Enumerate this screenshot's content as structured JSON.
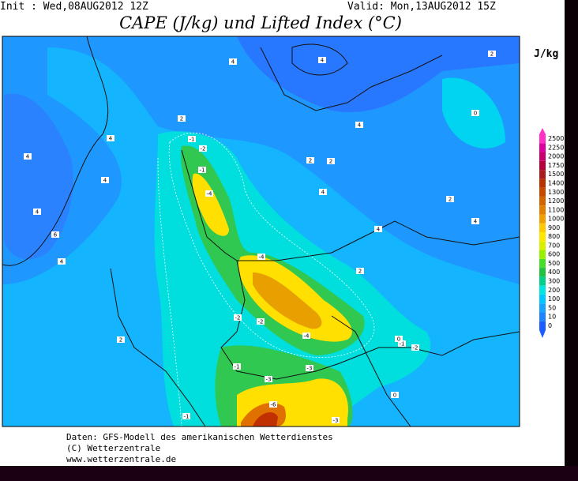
{
  "header": {
    "init": "Init : Wed,08AUG2012 12Z",
    "valid": "Valid: Mon,13AUG2012 15Z",
    "title": "CAPE (J/kg) und Lifted Index (°C)"
  },
  "colorbar": {
    "unit": "J/kg",
    "levels": [
      0,
      10,
      50,
      100,
      200,
      300,
      400,
      500,
      600,
      700,
      800,
      900,
      1000,
      1100,
      1200,
      1300,
      1400,
      1500,
      1750,
      2000,
      2250,
      2500
    ],
    "colors": [
      "#1a5cff",
      "#1e82ff",
      "#14a5ff",
      "#00c8ff",
      "#00e4e4",
      "#00d08c",
      "#20c040",
      "#46dc28",
      "#96f000",
      "#d8f000",
      "#ffe600",
      "#ffc800",
      "#f0a000",
      "#e08000",
      "#d06400",
      "#c44a00",
      "#b83200",
      "#a81e1e",
      "#b4003c",
      "#c8006e",
      "#dc00a0",
      "#ff30c8"
    ]
  },
  "map_labels": [
    "4",
    "4",
    "2",
    "0",
    "2",
    "-1",
    "-2",
    "-1",
    "-4",
    "2",
    "2",
    "4",
    "4",
    "2",
    "4",
    "6",
    "4",
    "2",
    "4",
    "4",
    "-4",
    "-2",
    "-2",
    "-4",
    "-1",
    "-2",
    "-1",
    "-3",
    "-3",
    "0",
    "-1",
    "-6",
    "-3",
    "2",
    "4",
    "4",
    "4",
    "0"
  ],
  "footer": {
    "source": "Daten: GFS-Modell des amerikanischen Wetterdienstes",
    "copyright": "(C) Wetterzentrale",
    "url": "www.wetterzentrale.de"
  }
}
